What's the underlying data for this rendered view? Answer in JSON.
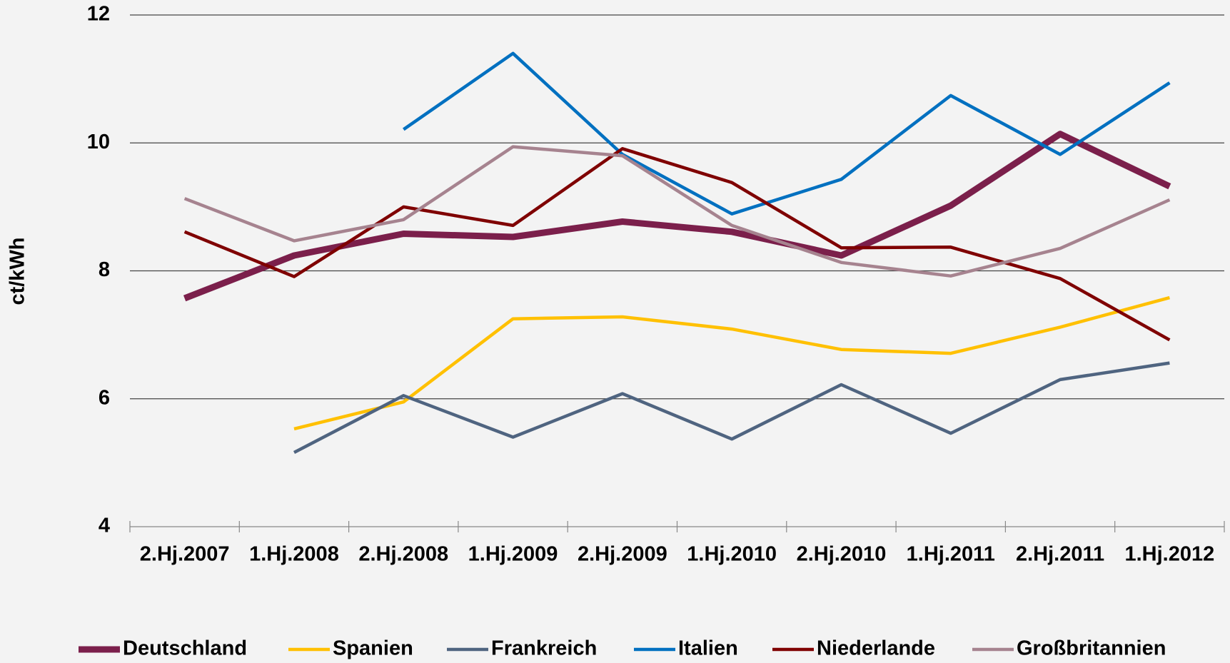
{
  "chart_data": {
    "type": "line",
    "y_label": "ct/kWh",
    "categories": [
      "2.Hj.2007",
      "1.Hj.2008",
      "2.Hj.2008",
      "1.Hj.2009",
      "2.Hj.2009",
      "1.Hj.2010",
      "2.Hj.2010",
      "1.Hj.2011",
      "2.Hj.2011",
      "1.Hj.2012"
    ],
    "series": [
      {
        "name": "Deutschland",
        "color": "#7b1f4b",
        "values": [
          7.57,
          8.24,
          8.58,
          8.53,
          8.77,
          8.61,
          8.24,
          9.02,
          10.14,
          9.32
        ]
      },
      {
        "name": "Spanien",
        "color": "#ffc000",
        "values": [
          null,
          5.53,
          5.95,
          7.25,
          7.28,
          7.09,
          6.77,
          6.71,
          7.12,
          7.58
        ]
      },
      {
        "name": "Frankreich",
        "color": "#4f6480",
        "values": [
          null,
          5.16,
          6.05,
          5.4,
          6.08,
          5.37,
          6.22,
          5.46,
          6.3,
          6.56
        ]
      },
      {
        "name": "Italien",
        "color": "#0070c0",
        "values": [
          null,
          null,
          10.21,
          11.4,
          9.82,
          8.89,
          9.43,
          10.74,
          9.82,
          10.94
        ]
      },
      {
        "name": "Niederlande",
        "color": "#7f0000",
        "values": [
          8.61,
          7.91,
          9.0,
          8.71,
          9.91,
          9.38,
          8.36,
          8.37,
          7.88,
          6.92
        ]
      },
      {
        "name": "Großbritannien",
        "color": "#a6838f",
        "values": [
          9.13,
          8.47,
          8.8,
          9.94,
          9.8,
          8.71,
          8.13,
          7.92,
          8.35,
          9.11
        ]
      }
    ],
    "ylim": [
      4,
      12
    ],
    "yticks": [
      4,
      6,
      8,
      10,
      12
    ],
    "grid": true,
    "legend": "bottom"
  }
}
